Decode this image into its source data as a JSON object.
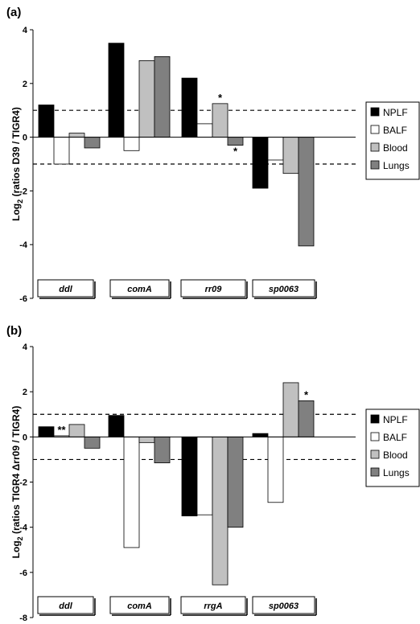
{
  "chart_data": [
    {
      "type": "bar",
      "panel_label": "(a)",
      "ylabel_main": "Log",
      "ylabel_sub": "2",
      "ylabel_rest": "(ratios D39 / TIGR4)",
      "ylim": [
        -6,
        4
      ],
      "yticks": [
        4,
        2,
        0,
        -2,
        -4,
        -6
      ],
      "threshold_lines": [
        1,
        -1
      ],
      "categories": [
        "ddl",
        "comA",
        "rr09",
        "sp0063"
      ],
      "series": [
        {
          "name": "NPLF",
          "color": "#000000",
          "values": [
            1.2,
            3.5,
            2.2,
            -1.9
          ]
        },
        {
          "name": "BALF",
          "color": "#ffffff",
          "values": [
            -1.0,
            -0.5,
            0.5,
            -0.85
          ]
        },
        {
          "name": "Blood",
          "color": "#c0c0c0",
          "values": [
            0.15,
            2.85,
            1.25,
            -1.35
          ]
        },
        {
          "name": "Lungs",
          "color": "#808080",
          "values": [
            -0.4,
            3.0,
            -0.3,
            -4.05
          ]
        }
      ],
      "annotations": [
        {
          "text": "*",
          "category": "rr09",
          "series": "Blood"
        },
        {
          "text": "*",
          "category": "rr09",
          "series": "Lungs"
        }
      ],
      "legend": "right"
    },
    {
      "type": "bar",
      "panel_label": "(b)",
      "ylabel_main": "Log",
      "ylabel_sub": "2",
      "ylabel_rest": "(ratios TIGR4 Δrr09 / TIGR4)",
      "ylim": [
        -8,
        4
      ],
      "yticks": [
        4,
        2,
        0,
        -2,
        -4,
        -6,
        -8
      ],
      "threshold_lines": [
        1,
        -1
      ],
      "categories": [
        "ddl",
        "comA",
        "rrgA",
        "sp0063"
      ],
      "series": [
        {
          "name": "NPLF",
          "color": "#000000",
          "values": [
            0.45,
            0.95,
            -3.5,
            0.15
          ]
        },
        {
          "name": "BALF",
          "color": "#ffffff",
          "values": [
            0.05,
            -4.9,
            -3.45,
            -2.9
          ]
        },
        {
          "name": "Blood",
          "color": "#c0c0c0",
          "values": [
            0.55,
            -0.25,
            -6.55,
            2.4
          ]
        },
        {
          "name": "Lungs",
          "color": "#808080",
          "values": [
            -0.5,
            -1.15,
            -4.0,
            1.6
          ]
        }
      ],
      "annotations": [
        {
          "text": "**",
          "category": "ddl",
          "series": "BALF"
        },
        {
          "text": "*",
          "category": "sp0063",
          "series": "Lungs"
        }
      ],
      "legend": "right"
    }
  ]
}
